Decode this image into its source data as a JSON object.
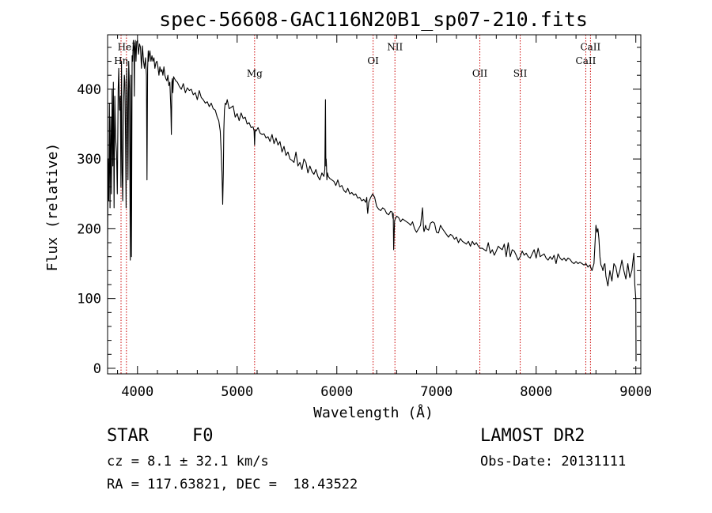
{
  "chart_data": {
    "type": "line",
    "title": "spec-56608-GAC116N20B1_sp07-210.fits",
    "xlabel": "Wavelength (Å)",
    "ylabel": "Flux (relative)",
    "xlim": [
      3700,
      9050
    ],
    "ylim": [
      -8,
      478
    ],
    "xticks": [
      4000,
      5000,
      6000,
      7000,
      8000,
      9000
    ],
    "yticks": [
      0,
      100,
      200,
      300,
      400
    ],
    "grid": false,
    "line_color": "#000000",
    "marker_color": "#cc0000",
    "spectral_lines": [
      {
        "label": "HeI",
        "wavelength": 3889,
        "label_y": 456
      },
      {
        "label": "Hη",
        "wavelength": 3835,
        "label_y": 436
      },
      {
        "label": "Mg",
        "wavelength": 5175,
        "label_y": 418
      },
      {
        "label": "OI",
        "wavelength": 6364,
        "label_y": 436
      },
      {
        "label": "NII",
        "wavelength": 6583,
        "label_y": 456
      },
      {
        "label": "OII",
        "wavelength": 7435,
        "label_y": 418
      },
      {
        "label": "SII",
        "wavelength": 7840,
        "label_y": 418
      },
      {
        "label": "CaII",
        "wavelength": 8545,
        "label_y": 456
      },
      {
        "label": "CaII",
        "wavelength": 8498,
        "label_y": 436
      }
    ],
    "series": [
      {
        "x": [
          3700,
          3705,
          3712,
          3718,
          3725,
          3732,
          3738,
          3745,
          3752,
          3758,
          3765,
          3772,
          3780,
          3790,
          3798,
          3806,
          3812,
          3820,
          3828,
          3834,
          3840,
          3846,
          3852,
          3860,
          3868,
          3874,
          3880,
          3886,
          3892,
          3898,
          3905,
          3912,
          3920,
          3928,
          3934,
          3940,
          3946,
          3952,
          3958,
          3964,
          3968,
          3972,
          3978,
          3985,
          3992,
          4000,
          4010,
          4020,
          4030,
          4040,
          4050,
          4060,
          4070,
          4080,
          4090,
          4095,
          4102,
          4108,
          4112,
          4118,
          4125,
          4135,
          4145,
          4155,
          4165,
          4175,
          4185,
          4195,
          4205,
          4215,
          4225,
          4235,
          4245,
          4255,
          4265,
          4275,
          4285,
          4295,
          4305,
          4315,
          4325,
          4335,
          4340,
          4345,
          4350,
          4355,
          4362,
          4372,
          4385,
          4400,
          4420,
          4440,
          4460,
          4480,
          4500,
          4520,
          4540,
          4560,
          4580,
          4600,
          4620,
          4640,
          4660,
          4680,
          4700,
          4720,
          4740,
          4760,
          4780,
          4800,
          4815,
          4830,
          4840,
          4848,
          4855,
          4861,
          4866,
          4872,
          4880,
          4890,
          4900,
          4920,
          4940,
          4960,
          4980,
          5000,
          5020,
          5040,
          5060,
          5080,
          5100,
          5120,
          5140,
          5160,
          5170,
          5175,
          5180,
          5190,
          5210,
          5230,
          5250,
          5270,
          5290,
          5310,
          5330,
          5350,
          5370,
          5390,
          5410,
          5430,
          5450,
          5470,
          5490,
          5510,
          5530,
          5550,
          5570,
          5590,
          5610,
          5630,
          5650,
          5670,
          5690,
          5710,
          5730,
          5750,
          5770,
          5790,
          5810,
          5830,
          5850,
          5870,
          5880,
          5886,
          5890,
          5893,
          5896,
          5900,
          5906,
          5915,
          5930,
          5950,
          5970,
          5990,
          6010,
          6030,
          6050,
          6070,
          6090,
          6110,
          6130,
          6150,
          6170,
          6190,
          6210,
          6230,
          6250,
          6270,
          6290,
          6300,
          6305,
          6310,
          6320,
          6340,
          6360,
          6380,
          6400,
          6420,
          6440,
          6460,
          6480,
          6500,
          6520,
          6540,
          6555,
          6560,
          6563,
          6566,
          6570,
          6580,
          6600,
          6620,
          6640,
          6660,
          6680,
          6700,
          6720,
          6740,
          6760,
          6780,
          6800,
          6820,
          6840,
          6860,
          6870,
          6875,
          6880,
          6890,
          6900,
          6920,
          6940,
          6960,
          6980,
          7000,
          7020,
          7040,
          7060,
          7080,
          7100,
          7120,
          7140,
          7160,
          7180,
          7200,
          7220,
          7240,
          7260,
          7280,
          7300,
          7320,
          7340,
          7360,
          7380,
          7400,
          7420,
          7440,
          7460,
          7480,
          7500,
          7520,
          7540,
          7560,
          7580,
          7600,
          7620,
          7640,
          7660,
          7680,
          7700,
          7720,
          7740,
          7760,
          7780,
          7800,
          7820,
          7840,
          7860,
          7880,
          7900,
          7920,
          7940,
          7960,
          7980,
          8000,
          8020,
          8040,
          8060,
          8080,
          8100,
          8120,
          8140,
          8160,
          8180,
          8200,
          8220,
          8240,
          8260,
          8280,
          8300,
          8320,
          8340,
          8360,
          8380,
          8400,
          8420,
          8440,
          8460,
          8480,
          8500,
          8520,
          8540,
          8560,
          8580,
          8600,
          8610,
          8620,
          8630,
          8640,
          8650,
          8660,
          8670,
          8680,
          8690,
          8700,
          8720,
          8740,
          8760,
          8780,
          8800,
          8820,
          8840,
          8860,
          8880,
          8900,
          8920,
          8940,
          8960,
          8980,
          8990,
          9000,
          9002
        ],
        "y": [
          170,
          300,
          240,
          380,
          230,
          360,
          250,
          400,
          290,
          410,
          230,
          390,
          330,
          310,
          250,
          400,
          430,
          370,
          390,
          260,
          440,
          280,
          240,
          380,
          420,
          410,
          330,
          230,
          430,
          395,
          270,
          440,
          400,
          155,
          420,
          160,
          448,
          440,
          470,
          460,
          390,
          460,
          470,
          440,
          468,
          470,
          450,
          465,
          460,
          430,
          462,
          440,
          430,
          445,
          420,
          270,
          430,
          455,
          440,
          450,
          455,
          440,
          448,
          440,
          445,
          430,
          438,
          440,
          432,
          420,
          432,
          425,
          428,
          420,
          432,
          420,
          415,
          412,
          420,
          405,
          410,
          370,
          335,
          410,
          415,
          395,
          418,
          415,
          412,
          410,
          404,
          400,
          408,
          395,
          402,
          398,
          400,
          392,
          395,
          385,
          398,
          388,
          385,
          380,
          382,
          375,
          380,
          372,
          370,
          360,
          355,
          340,
          310,
          280,
          235,
          280,
          340,
          370,
          380,
          378,
          385,
          372,
          374,
          376,
          360,
          365,
          355,
          366,
          358,
          360,
          350,
          352,
          345,
          346,
          340,
          320,
          342,
          340,
          345,
          337,
          335,
          336,
          330,
          332,
          325,
          335,
          322,
          330,
          320,
          325,
          310,
          318,
          305,
          310,
          300,
          298,
          295,
          310,
          290,
          295,
          285,
          300,
          295,
          280,
          290,
          282,
          278,
          285,
          275,
          270,
          280,
          275,
          285,
          385,
          290,
          300,
          290,
          270,
          280,
          275,
          272,
          270,
          268,
          262,
          270,
          260,
          262,
          255,
          252,
          258,
          250,
          252,
          248,
          250,
          244,
          245,
          240,
          242,
          238,
          245,
          230,
          222,
          238,
          245,
          250,
          245,
          232,
          228,
          226,
          230,
          228,
          222,
          220,
          225,
          224,
          218,
          215,
          222,
          170,
          212,
          218,
          216,
          210,
          214,
          212,
          210,
          208,
          205,
          210,
          200,
          195,
          200,
          205,
          230,
          200,
          196,
          198,
          205,
          200,
          198,
          208,
          210,
          208,
          195,
          194,
          205,
          200,
          196,
          192,
          188,
          192,
          190,
          185,
          188,
          180,
          186,
          182,
          180,
          178,
          182,
          175,
          182,
          177,
          180,
          175,
          172,
          172,
          170,
          168,
          180,
          165,
          170,
          162,
          168,
          175,
          172,
          170,
          178,
          160,
          180,
          160,
          170,
          168,
          162,
          155,
          160,
          168,
          162,
          165,
          160,
          158,
          164,
          170,
          158,
          172,
          160,
          162,
          164,
          158,
          155,
          160,
          156,
          162,
          150,
          164,
          158,
          155,
          158,
          154,
          158,
          156,
          152,
          150,
          153,
          150,
          152,
          150,
          148,
          150,
          145,
          148,
          140,
          150,
          205,
          195,
          200,
          185,
          160,
          148,
          145,
          140,
          148,
          150,
          132,
          118,
          140,
          125,
          150,
          145,
          130,
          140,
          155,
          140,
          128,
          150,
          130,
          140,
          165,
          120,
          100,
          10
        ]
      }
    ]
  },
  "info": {
    "object_class": "STAR",
    "subclass": "F0",
    "survey": "LAMOST DR2",
    "cz": "cz = 8.1 ± 32.1 km/s",
    "obs_date": "Obs-Date: 20131111",
    "coords": "RA = 117.63821, DEC =  18.43522"
  }
}
